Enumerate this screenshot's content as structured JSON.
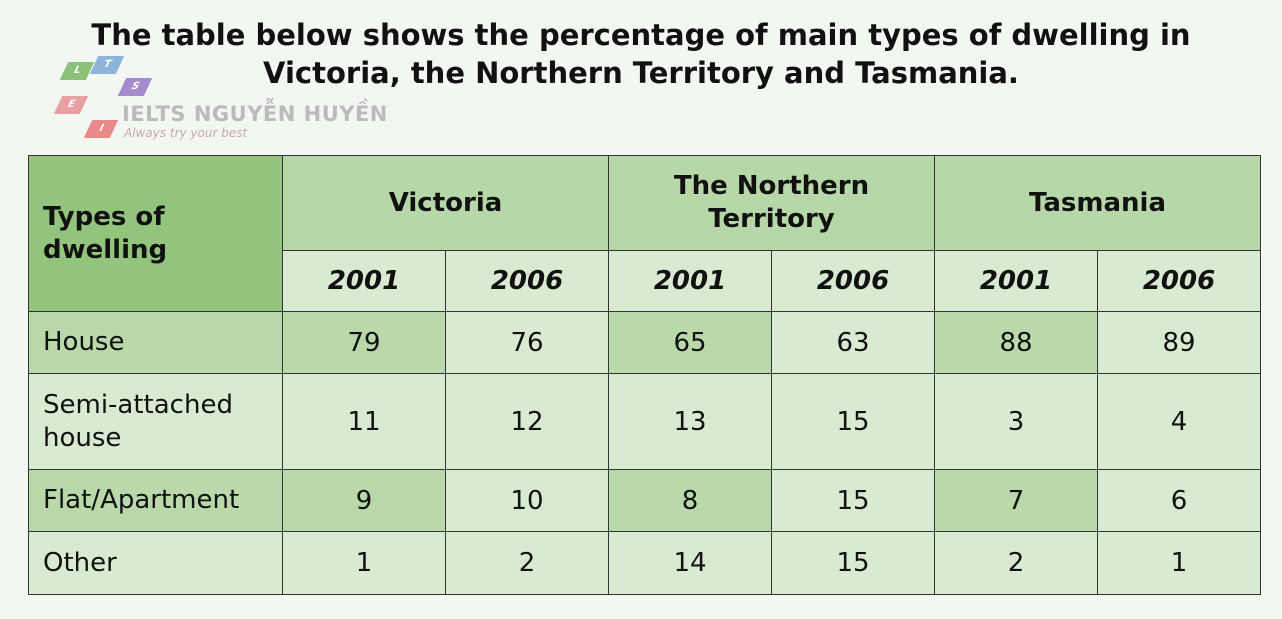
{
  "title": "The table below shows the percentage of main types of dwelling in Victoria, the Northern Territory and Tasmania.",
  "logo": {
    "letters": [
      "L",
      "T",
      "S",
      "E",
      "I"
    ],
    "name": "IELTS NGUYỄN HUYỀN",
    "tagline": "Always try your best"
  },
  "table": {
    "corner": "Types of dwelling",
    "groups": [
      {
        "name": "Victoria",
        "years": [
          "2001",
          "2006"
        ]
      },
      {
        "name": "The Northern Territory",
        "years": [
          "2001",
          "2006"
        ]
      },
      {
        "name": "Tasmania",
        "years": [
          "2001",
          "2006"
        ]
      }
    ],
    "rows": [
      {
        "label": "House",
        "values": [
          79,
          76,
          65,
          63,
          88,
          89
        ]
      },
      {
        "label": "Semi-attached house",
        "values": [
          11,
          12,
          13,
          15,
          3,
          4
        ]
      },
      {
        "label": "Flat/Apartment",
        "values": [
          9,
          10,
          8,
          15,
          7,
          6
        ]
      },
      {
        "label": "Other",
        "values": [
          1,
          2,
          14,
          15,
          2,
          1
        ]
      }
    ]
  }
}
